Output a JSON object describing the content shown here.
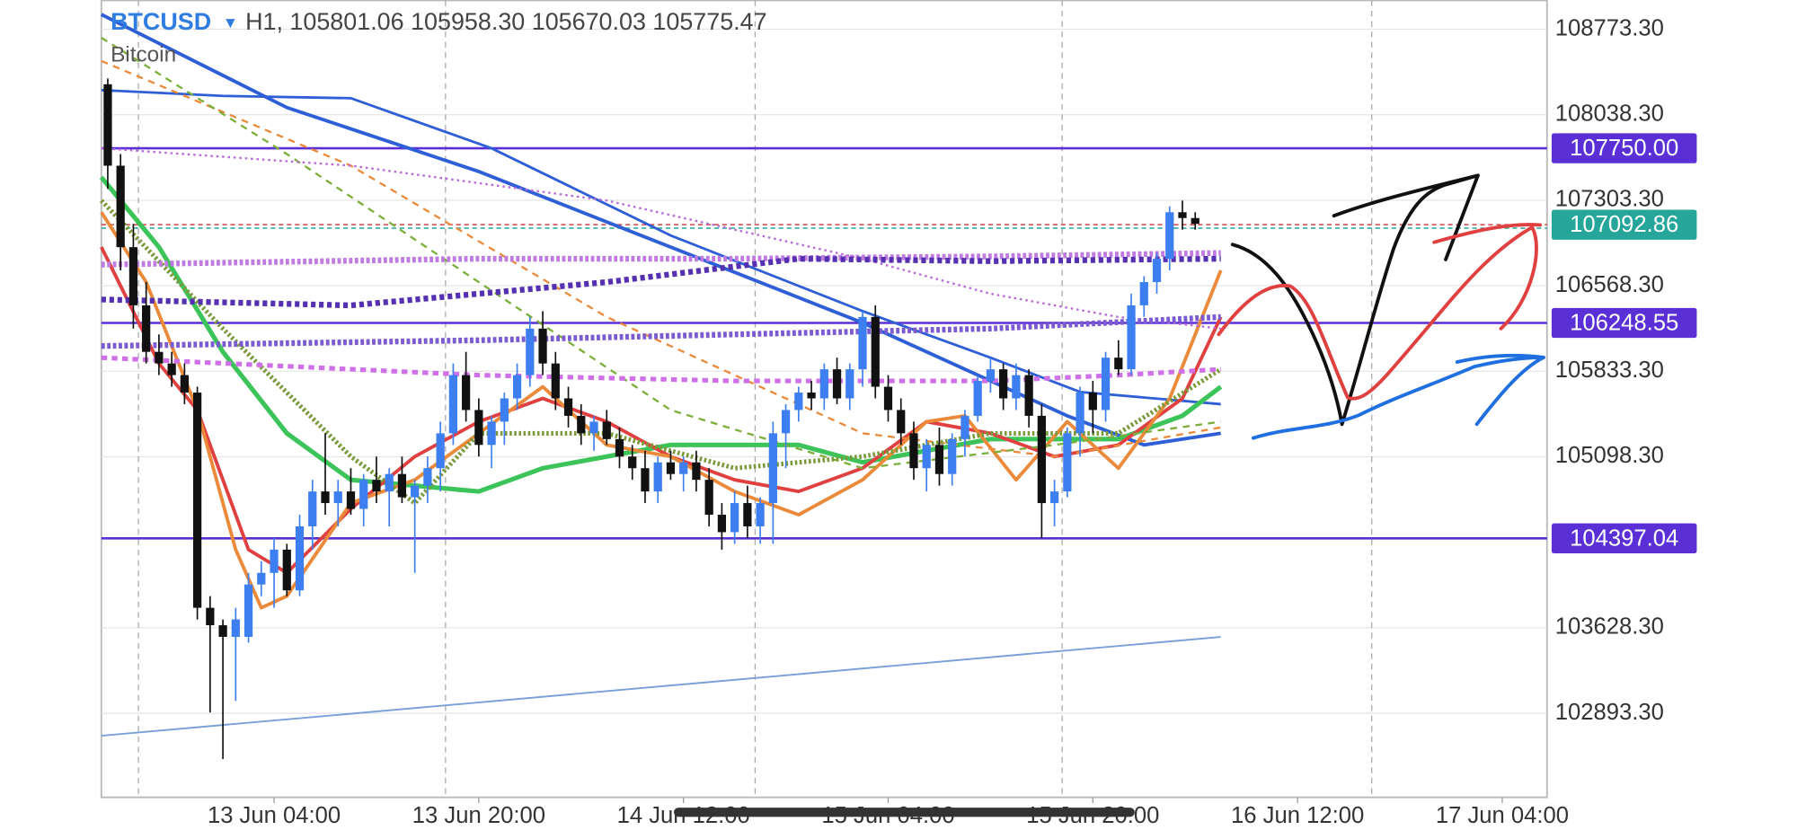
{
  "chart_data": {
    "type": "candlestick",
    "title": "BTCUSD",
    "symbol_menu": "▾",
    "ohlc_text": "H1, 105801.06 105958.30 105670.03 105775.47",
    "subtitle": "Bitcoin",
    "up_color": "#3d7ff0",
    "down_color": "#111111",
    "xlim": [
      -9.5,
      103.5
    ],
    "ylim": [
      102170.7,
      109020.8
    ],
    "xticks": [
      {
        "value": 4,
        "label": "13 Jun 04:00"
      },
      {
        "value": 20,
        "label": "13 Jun 20:00"
      },
      {
        "value": 36,
        "label": "14 Jun 12:00"
      },
      {
        "value": 52,
        "label": "15 Jun 04:00"
      },
      {
        "value": 68,
        "label": "15 Jun 20:00"
      },
      {
        "value": 84,
        "label": "16 Jun 12:00"
      },
      {
        "value": 100,
        "label": "17 Jun 04:00"
      }
    ],
    "xgrid": [
      -6.6,
      17.4,
      41.6,
      65.6,
      89.8
    ],
    "yticks": [
      {
        "value": 108773.3,
        "label": "108773.30"
      },
      {
        "value": 108038.3,
        "label": "108038.30"
      },
      {
        "value": 107303.3,
        "label": "107303.30"
      },
      {
        "value": 106568.3,
        "label": "106568.30"
      },
      {
        "value": 105833.3,
        "label": "105833.30"
      },
      {
        "value": 105098.3,
        "label": "105098.30"
      },
      {
        "value": 103628.3,
        "label": "103628.30"
      },
      {
        "value": 102893.3,
        "label": "102893.30"
      }
    ],
    "grid": true,
    "x": [
      -9,
      -8,
      -7,
      -6,
      -5,
      -4,
      -3,
      -2,
      -1,
      0,
      1,
      2,
      3,
      4,
      5,
      6,
      7,
      8,
      9,
      10,
      11,
      12,
      13,
      14,
      15,
      16,
      17,
      18,
      19,
      20,
      21,
      22,
      23,
      24,
      25,
      26,
      27,
      28,
      29,
      30,
      31,
      32,
      33,
      34,
      35,
      36,
      37,
      38,
      39,
      40,
      41,
      42,
      43,
      44,
      45,
      46,
      47,
      48,
      49,
      50,
      51,
      52,
      53,
      54,
      55,
      56,
      57,
      58,
      59,
      60,
      61,
      62,
      63,
      64,
      65,
      66,
      67,
      68,
      69,
      70,
      71,
      72,
      73,
      74,
      75,
      76
    ],
    "candles": [
      [
        108300,
        108350,
        107400,
        107600
      ],
      [
        107600,
        107700,
        106700,
        106900
      ],
      [
        106900,
        107100,
        106200,
        106400
      ],
      [
        106400,
        106600,
        105900,
        106000
      ],
      [
        106000,
        106150,
        105800,
        105900
      ],
      [
        105900,
        106000,
        105700,
        105800
      ],
      [
        105800,
        105900,
        105550,
        105650
      ],
      [
        105650,
        105700,
        103700,
        103800
      ],
      [
        103800,
        103900,
        102900,
        103650
      ],
      [
        103650,
        103700,
        102500,
        103550
      ],
      [
        103550,
        103800,
        103000,
        103700
      ],
      [
        103550,
        104100,
        103500,
        104000
      ],
      [
        104000,
        104200,
        103900,
        104100
      ],
      [
        104100,
        104400,
        103800,
        104300
      ],
      [
        104300,
        104350,
        103900,
        103950
      ],
      [
        103950,
        104600,
        103900,
        104500
      ],
      [
        104500,
        104900,
        104300,
        104800
      ],
      [
        104800,
        105300,
        104600,
        104700
      ],
      [
        104700,
        104900,
        104500,
        104800
      ],
      [
        104800,
        105000,
        104600,
        104650
      ],
      [
        104650,
        104950,
        104500,
        104900
      ],
      [
        104900,
        105100,
        104700,
        104800
      ],
      [
        104800,
        105000,
        104500,
        104950
      ],
      [
        104950,
        105100,
        104700,
        104750
      ],
      [
        104750,
        104900,
        104100,
        104850
      ],
      [
        104850,
        105100,
        104700,
        105000
      ],
      [
        105000,
        105400,
        104800,
        105300
      ],
      [
        105300,
        105900,
        105200,
        105800
      ],
      [
        105800,
        106000,
        105400,
        105500
      ],
      [
        105500,
        105600,
        105100,
        105200
      ],
      [
        105200,
        105450,
        105000,
        105400
      ],
      [
        105400,
        105650,
        105200,
        105600
      ],
      [
        105600,
        105900,
        105500,
        105800
      ],
      [
        105800,
        106300,
        105700,
        106200
      ],
      [
        106200,
        106350,
        105800,
        105900
      ],
      [
        105900,
        106000,
        105500,
        105600
      ],
      [
        105600,
        105700,
        105350,
        105450
      ],
      [
        105450,
        105550,
        105200,
        105300
      ],
      [
        105300,
        105450,
        105150,
        105400
      ],
      [
        105400,
        105500,
        105200,
        105250
      ],
      [
        105250,
        105350,
        105000,
        105100
      ],
      [
        105100,
        105200,
        104900,
        105000
      ],
      [
        105000,
        105150,
        104700,
        104800
      ],
      [
        104800,
        105100,
        104700,
        105050
      ],
      [
        105050,
        105150,
        104900,
        104950
      ],
      [
        104950,
        105100,
        104800,
        105050
      ],
      [
        105050,
        105150,
        104800,
        104900
      ],
      [
        104900,
        105000,
        104500,
        104600
      ],
      [
        104600,
        104700,
        104300,
        104450
      ],
      [
        104450,
        104800,
        104350,
        104700
      ],
      [
        104700,
        104850,
        104400,
        104500
      ],
      [
        104500,
        104750,
        104350,
        104700
      ],
      [
        104700,
        105400,
        104350,
        105300
      ],
      [
        105300,
        105550,
        105000,
        105500
      ],
      [
        105500,
        105700,
        105400,
        105650
      ],
      [
        105650,
        105750,
        105500,
        105600
      ],
      [
        105600,
        105900,
        105500,
        105850
      ],
      [
        105850,
        105950,
        105550,
        105600
      ],
      [
        105600,
        105900,
        105500,
        105850
      ],
      [
        105850,
        106350,
        105700,
        106300
      ],
      [
        106300,
        106400,
        105600,
        105700
      ],
      [
        105700,
        105800,
        105400,
        105500
      ],
      [
        105500,
        105600,
        105200,
        105300
      ],
      [
        105300,
        105400,
        104900,
        105000
      ],
      [
        105000,
        105250,
        104800,
        105200
      ],
      [
        105200,
        105350,
        104850,
        104950
      ],
      [
        104950,
        105300,
        104850,
        105250
      ],
      [
        105250,
        105500,
        105100,
        105450
      ],
      [
        105450,
        105800,
        105400,
        105750
      ],
      [
        105750,
        105950,
        105650,
        105850
      ],
      [
        105850,
        105900,
        105500,
        105600
      ],
      [
        105600,
        105900,
        105500,
        105800
      ],
      [
        105800,
        105850,
        105350,
        105450
      ],
      [
        105450,
        105550,
        104400,
        104700
      ],
      [
        104700,
        104900,
        104500,
        104800
      ],
      [
        104800,
        105350,
        104750,
        105300
      ],
      [
        105300,
        105700,
        105100,
        105650
      ],
      [
        105650,
        105750,
        105300,
        105500
      ],
      [
        105500,
        106000,
        105400,
        105950
      ],
      [
        105950,
        106100,
        105800,
        105850
      ],
      [
        105850,
        106500,
        105800,
        106400
      ],
      [
        106400,
        106650,
        106300,
        106600
      ],
      [
        106600,
        106850,
        106500,
        106800
      ],
      [
        106800,
        107250,
        106700,
        107200
      ],
      [
        107200,
        107300,
        107050,
        107150
      ],
      [
        107150,
        107200,
        107050,
        107100
      ]
    ],
    "indicators": [
      {
        "color": "#2f5fd6",
        "width": 3,
        "dash": "none",
        "x": [
          -9.5,
          5,
          20,
          35,
          50,
          60,
          66,
          72,
          78
        ],
        "values": [
          108900,
          108100,
          107550,
          106900,
          106250,
          105750,
          105450,
          105200,
          105300
        ]
      },
      {
        "color": "#2f5fd6",
        "width": 2.2,
        "dash": "none",
        "x": [
          -9.5,
          0,
          10,
          21,
          35,
          50,
          60,
          67,
          78
        ],
        "values": [
          108250,
          108200,
          108180,
          107750,
          107000,
          106350,
          105950,
          105655,
          105550
        ]
      },
      {
        "color": "#3cc45a",
        "width": 4,
        "dash": "none",
        "x": [
          -9.5,
          -5,
          0,
          5,
          10,
          20,
          25,
          35,
          45,
          50,
          60,
          70,
          75,
          78
        ],
        "values": [
          107500,
          106900,
          106000,
          105300,
          104900,
          104800,
          105000,
          105200,
          105200,
          105050,
          105250,
          105250,
          105450,
          105700
        ]
      },
      {
        "color": "#e04040",
        "width": 3,
        "dash": "none",
        "x": [
          -9.5,
          -5,
          -2,
          2,
          5,
          10,
          15,
          20,
          25,
          30,
          35,
          40,
          45,
          50,
          55,
          60,
          65,
          70,
          75,
          78
        ],
        "values": [
          106900,
          105900,
          105500,
          104300,
          104100,
          104650,
          105100,
          105400,
          105600,
          105400,
          105100,
          104900,
          104800,
          105000,
          105400,
          105300,
          105100,
          105200,
          105600,
          106300
        ]
      },
      {
        "color": "#ea8a3a",
        "width": 3,
        "dash": "none",
        "x": [
          -9.5,
          -6,
          -2,
          1,
          3,
          5,
          10,
          15,
          20,
          25,
          30,
          35,
          40,
          45,
          50,
          55,
          58,
          62,
          66,
          70,
          74,
          78
        ],
        "values": [
          107200,
          106600,
          105500,
          104300,
          103800,
          103900,
          104700,
          104900,
          105300,
          105700,
          105200,
          105100,
          104800,
          104600,
          104900,
          105400,
          105450,
          104900,
          105400,
          105000,
          105600,
          106700
        ]
      },
      {
        "color": "#ea8a3a",
        "width": 1.8,
        "dash": "6 5",
        "x": [
          -9.5,
          10,
          30,
          50,
          65,
          78
        ],
        "values": [
          108500,
          107600,
          106300,
          105300,
          105100,
          105350
        ]
      },
      {
        "color": "#7cae3a",
        "width": 1.8,
        "dash": "6 5",
        "x": [
          -9.5,
          5,
          20,
          35,
          50,
          65,
          78
        ],
        "values": [
          108700,
          107700,
          106600,
          105500,
          105000,
          105200,
          105400
        ]
      },
      {
        "color": "#7a9a3a",
        "width": 4,
        "dash": "2 2",
        "x": [
          -9.5,
          0,
          10,
          15,
          20,
          30,
          40,
          50,
          60,
          70,
          78
        ],
        "values": [
          107300,
          106200,
          105100,
          104700,
          105300,
          105300,
          105000,
          105100,
          105300,
          105300,
          105850
        ]
      },
      {
        "color": "#b86bd8",
        "width": 1.8,
        "dash": "2 3",
        "x": [
          -9.5,
          10,
          30,
          50,
          60,
          70,
          78
        ],
        "values": [
          107750,
          107600,
          107300,
          106800,
          106500,
          106300,
          106200
        ]
      },
      {
        "color": "#c07be0",
        "width": 5,
        "dash": "3 2",
        "x": [
          -9.5,
          20,
          40,
          60,
          78
        ],
        "values": [
          106750,
          106800,
          106800,
          106820,
          106850
        ]
      },
      {
        "color": "#5530b0",
        "width": 5,
        "dash": "4 3",
        "x": [
          -9.5,
          10,
          30,
          45,
          60,
          78
        ],
        "values": [
          106450,
          106400,
          106600,
          106800,
          106780,
          106800
        ]
      },
      {
        "color": "#7c5bd0",
        "width": 5,
        "dash": "3 2",
        "x": [
          -9.5,
          20,
          40,
          60,
          78
        ],
        "values": [
          106050,
          106100,
          106150,
          106200,
          106300
        ]
      },
      {
        "color": "#d070e8",
        "width": 4,
        "dash": "5 4",
        "x": [
          -9.5,
          20,
          40,
          60,
          70,
          78
        ],
        "values": [
          105950,
          105800,
          105750,
          105750,
          105800,
          105850
        ]
      },
      {
        "color": "#7aa0d8",
        "width": 1.5,
        "dash": "none",
        "x": [
          -9.5,
          78
        ],
        "values": [
          102700,
          103550
        ]
      }
    ],
    "levels": [
      {
        "value": 107750,
        "label": "107750.00",
        "color": "#5b2fd6"
      },
      {
        "value": 106248.55,
        "label": "106248.55",
        "color": "#5b2fd6"
      },
      {
        "value": 104397.04,
        "label": "104397.04",
        "color": "#5b2fd6"
      },
      {
        "value": 107092.86,
        "label": "107092.86",
        "color": "#26a69a"
      }
    ]
  }
}
